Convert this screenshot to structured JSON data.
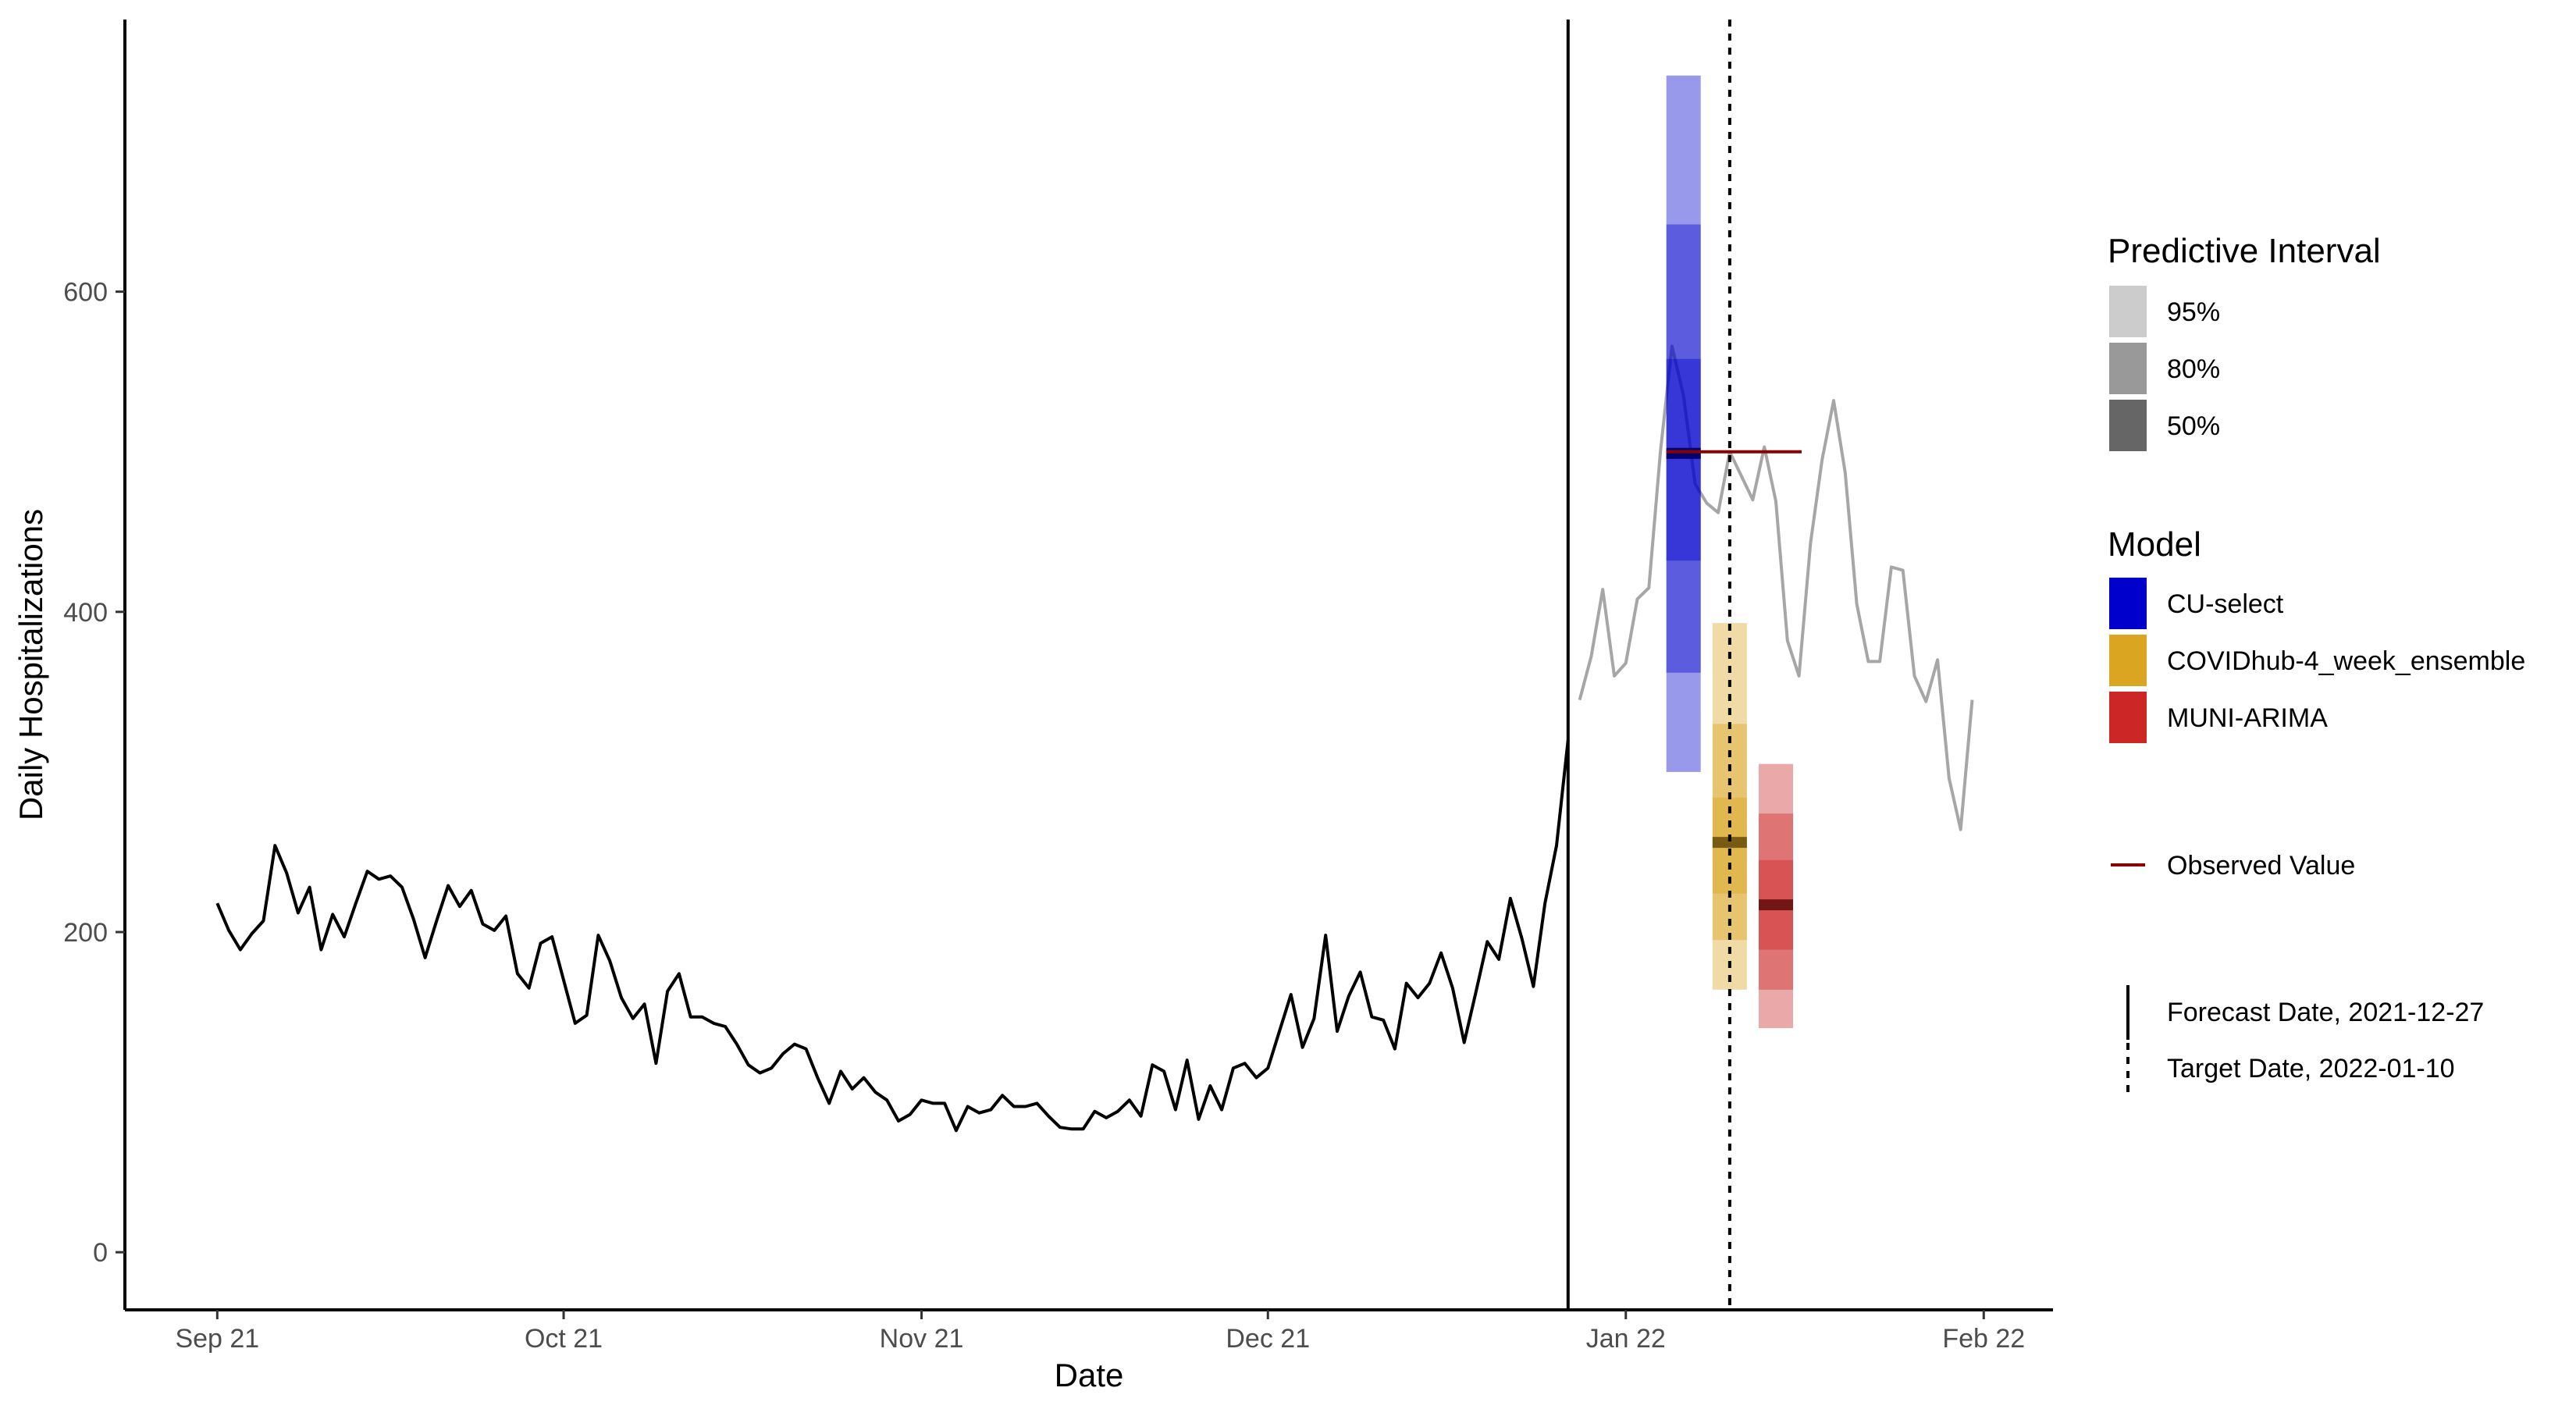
{
  "chart_data": {
    "type": "line",
    "xlabel": "Date",
    "ylabel": "Daily Hospitalizations",
    "x_ticks": [
      {
        "date": "2021-09-01",
        "label": "Sep 21"
      },
      {
        "date": "2021-10-01",
        "label": "Oct 21"
      },
      {
        "date": "2021-11-01",
        "label": "Nov 21"
      },
      {
        "date": "2021-12-01",
        "label": "Dec 21"
      },
      {
        "date": "2022-01-01",
        "label": "Jan 22"
      },
      {
        "date": "2022-02-01",
        "label": "Feb 22"
      }
    ],
    "y_ticks": [
      0,
      200,
      400,
      600
    ],
    "xlim": [
      "2021-08-24",
      "2022-02-07"
    ],
    "ylim": [
      -36,
      770
    ],
    "grid": false,
    "colors": {
      "training_line": "#000000",
      "observed_line": "#a6a6a6",
      "observed_value": "#8b0000",
      "CU-select": "#0000cd",
      "COVIDhub-4_week_ensemble": "#daa520",
      "MUNI-ARIMA": "#cd2626"
    },
    "training_series": {
      "start_date": "2021-09-01",
      "values": [
        218,
        201,
        189,
        199,
        207,
        254,
        237,
        212,
        228,
        189,
        211,
        197,
        218,
        238,
        233,
        235,
        228,
        208,
        184,
        207,
        229,
        216,
        226,
        205,
        201,
        210,
        174,
        165,
        193,
        197,
        170,
        143,
        148,
        198,
        182,
        159,
        146,
        155,
        118,
        163,
        174,
        147,
        147,
        143,
        141,
        130,
        117,
        112,
        115,
        124,
        130,
        127,
        109,
        93,
        113,
        102,
        109,
        100,
        95,
        82,
        86,
        95,
        93,
        93,
        76,
        91,
        87,
        89,
        98,
        91,
        91,
        93,
        85,
        78,
        77,
        77,
        88,
        84,
        88,
        95,
        85,
        117,
        113,
        89,
        120,
        83,
        104,
        89,
        115,
        118,
        109,
        115,
        138,
        161,
        128,
        146,
        198,
        138,
        160,
        175,
        147,
        145,
        127,
        168,
        159,
        168,
        187,
        165,
        131,
        162,
        194,
        183,
        221,
        196,
        166,
        218,
        254,
        320
      ]
    },
    "observed_series": {
      "start_date": "2021-12-28",
      "values": [
        345,
        372,
        414,
        360,
        368,
        408,
        415,
        500,
        566,
        535,
        480,
        468,
        462,
        500,
        485,
        470,
        503,
        469,
        382,
        360,
        443,
        495,
        532,
        487,
        405,
        369,
        369,
        428,
        426,
        360,
        344,
        370,
        296,
        264,
        345
      ]
    },
    "forecast_date": "2021-12-27",
    "target_date": "2022-01-10",
    "observed_value": 500,
    "forecasts": [
      {
        "model": "CU-select",
        "date": "2022-01-06",
        "median": 499,
        "pi50": [
          432,
          558
        ],
        "pi80": [
          362,
          642
        ],
        "pi95": [
          300,
          735
        ]
      },
      {
        "model": "COVIDhub-4_week_ensemble",
        "date": "2022-01-10",
        "median": 256,
        "pi50": [
          224,
          284
        ],
        "pi80": [
          195,
          330
        ],
        "pi95": [
          164,
          393
        ]
      },
      {
        "model": "MUNI-ARIMA",
        "date": "2022-01-14",
        "median": 217,
        "pi50": [
          189,
          245
        ],
        "pi80": [
          164,
          274
        ],
        "pi95": [
          140,
          305
        ]
      }
    ],
    "legend": {
      "position": "right",
      "interval_title": "Predictive Interval",
      "interval_items": [
        "95%",
        "80%",
        "50%"
      ],
      "model_title": "Model",
      "model_items": [
        "CU-select",
        "COVIDhub-4_week_ensemble",
        "MUNI-ARIMA"
      ],
      "observed_label": "Observed Value",
      "forecast_label": "Forecast Date, 2021-12-27",
      "target_label": "Target Date, 2022-01-10"
    }
  }
}
